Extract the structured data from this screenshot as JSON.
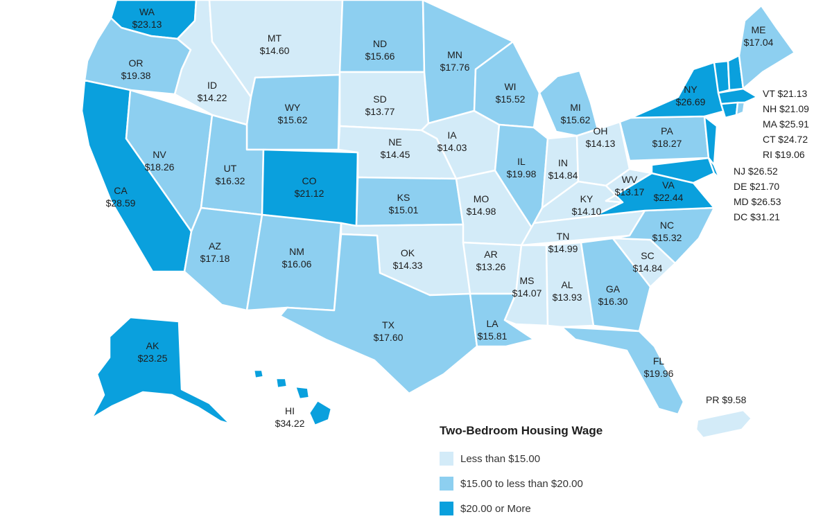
{
  "colors": {
    "low": "#d3ebf8",
    "mid": "#8dcff0",
    "high": "#0aa0dd",
    "border": "#ffffff"
  },
  "legend": {
    "title": "Two-Bedroom Housing Wage",
    "items": [
      {
        "label": "Less than $15.00",
        "color": "#d3ebf8"
      },
      {
        "label": "$15.00 to less than $20.00",
        "color": "#8dcff0"
      },
      {
        "label": "$20.00 or More",
        "color": "#0aa0dd"
      }
    ]
  },
  "states": {
    "WA": {
      "abbr": "WA",
      "wage": "$23.13"
    },
    "OR": {
      "abbr": "OR",
      "wage": "$19.38"
    },
    "CA": {
      "abbr": "CA",
      "wage": "$28.59"
    },
    "NV": {
      "abbr": "NV",
      "wage": "$18.26"
    },
    "ID": {
      "abbr": "ID",
      "wage": "$14.22"
    },
    "MT": {
      "abbr": "MT",
      "wage": "$14.60"
    },
    "WY": {
      "abbr": "WY",
      "wage": "$15.62"
    },
    "UT": {
      "abbr": "UT",
      "wage": "$16.32"
    },
    "AZ": {
      "abbr": "AZ",
      "wage": "$17.18"
    },
    "CO": {
      "abbr": "CO",
      "wage": "$21.12"
    },
    "NM": {
      "abbr": "NM",
      "wage": "$16.06"
    },
    "ND": {
      "abbr": "ND",
      "wage": "$15.66"
    },
    "SD": {
      "abbr": "SD",
      "wage": "$13.77"
    },
    "NE": {
      "abbr": "NE",
      "wage": "$14.45"
    },
    "KS": {
      "abbr": "KS",
      "wage": "$15.01"
    },
    "OK": {
      "abbr": "OK",
      "wage": "$14.33"
    },
    "TX": {
      "abbr": "TX",
      "wage": "$17.60"
    },
    "MN": {
      "abbr": "MN",
      "wage": "$17.76"
    },
    "IA": {
      "abbr": "IA",
      "wage": "$14.03"
    },
    "MO": {
      "abbr": "MO",
      "wage": "$14.98"
    },
    "AR": {
      "abbr": "AR",
      "wage": "$13.26"
    },
    "LA": {
      "abbr": "LA",
      "wage": "$15.81"
    },
    "WI": {
      "abbr": "WI",
      "wage": "$15.52"
    },
    "IL": {
      "abbr": "IL",
      "wage": "$19.98"
    },
    "MI": {
      "abbr": "MI",
      "wage": "$15.62"
    },
    "IN": {
      "abbr": "IN",
      "wage": "$14.84"
    },
    "OH": {
      "abbr": "OH",
      "wage": "$14.13"
    },
    "KY": {
      "abbr": "KY",
      "wage": "$14.10"
    },
    "TN": {
      "abbr": "TN",
      "wage": "$14.99"
    },
    "MS": {
      "abbr": "MS",
      "wage": "$14.07"
    },
    "AL": {
      "abbr": "AL",
      "wage": "$13.93"
    },
    "GA": {
      "abbr": "GA",
      "wage": "$16.30"
    },
    "FL": {
      "abbr": "FL",
      "wage": "$19.96"
    },
    "SC": {
      "abbr": "SC",
      "wage": "$14.84"
    },
    "NC": {
      "abbr": "NC",
      "wage": "$15.32"
    },
    "VA": {
      "abbr": "VA",
      "wage": "$22.44"
    },
    "WV": {
      "abbr": "WV",
      "wage": "$13.17"
    },
    "PA": {
      "abbr": "PA",
      "wage": "$18.27"
    },
    "NY": {
      "abbr": "NY",
      "wage": "$26.69"
    },
    "ME": {
      "abbr": "ME",
      "wage": "$17.04"
    },
    "AK": {
      "abbr": "AK",
      "wage": "$23.25"
    },
    "HI": {
      "abbr": "HI",
      "wage": "$34.22"
    }
  },
  "side_labels": {
    "VT": "VT $21.13",
    "NH": "NH $21.09",
    "MA": "MA $25.91",
    "CT": "CT $24.72",
    "RI": "RI $19.06",
    "NJ": "NJ $26.52",
    "DE": "DE $21.70",
    "MD": "MD $26.53",
    "DC": "DC $31.21",
    "PR": "PR $9.58"
  }
}
